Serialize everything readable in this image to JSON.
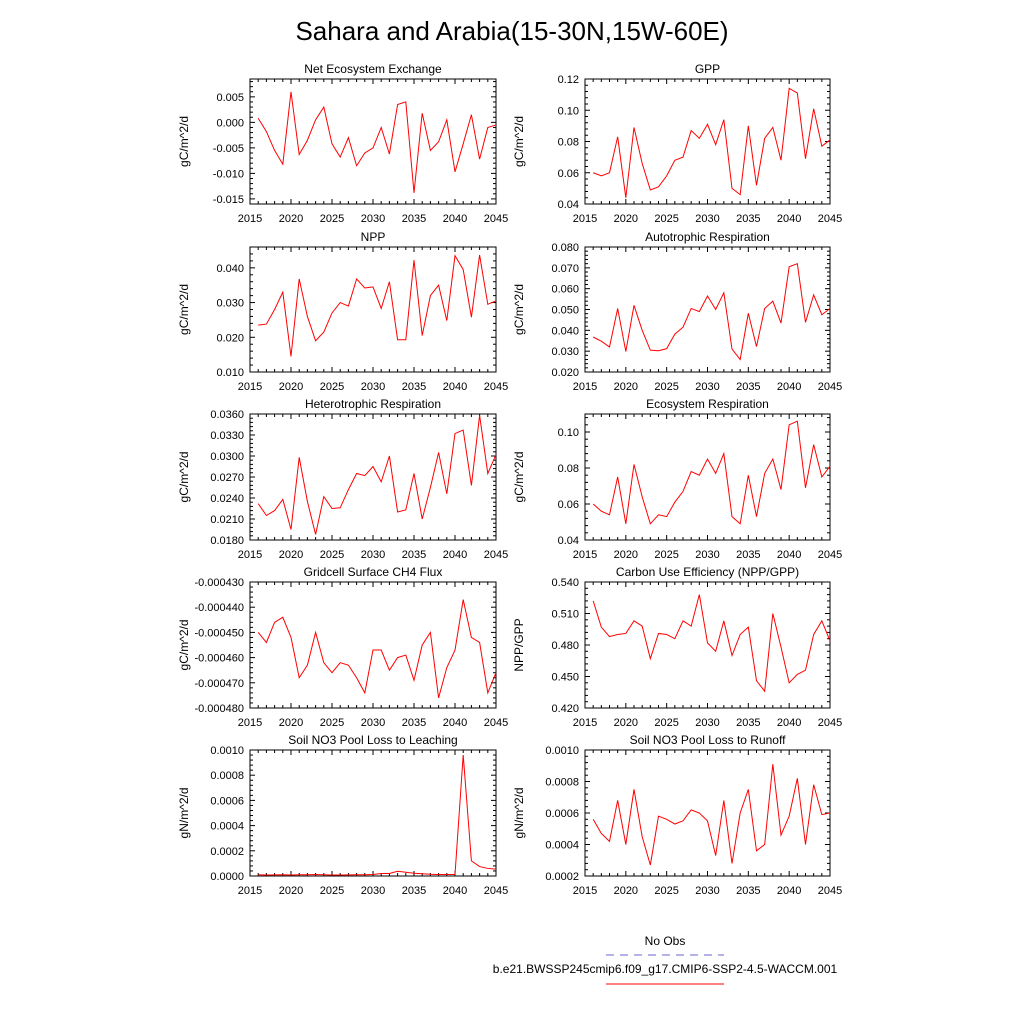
{
  "figure": {
    "title": "Sahara and Arabia(15-30N,15W-60E)",
    "legend": {
      "obs_label": "No Obs",
      "obs_color": "#6666cc",
      "model_label": "b.e21.BWSSP245cmip6.f09_g17.CMIP6-SSP2-4.5-WACCM.001",
      "model_color": "#ff0000"
    }
  },
  "chart_data": [
    {
      "type": "line",
      "title": "Net Ecosystem Exchange",
      "ylabel": "gC/m^2/d",
      "xlabel": "",
      "xlim": [
        2015,
        2045
      ],
      "ylim": [
        -0.016,
        0.0085
      ],
      "yticks": [
        -0.015,
        -0.01,
        -0.005,
        0.0,
        0.005
      ],
      "ytick_labels": [
        "-0.015",
        "-0.010",
        "-0.005",
        "0.000",
        "0.005"
      ],
      "xticks": [
        2015,
        2020,
        2025,
        2030,
        2035,
        2040,
        2045
      ],
      "series": [
        {
          "color": "#ff0000",
          "x": [
            2016,
            2017,
            2018,
            2019,
            2020,
            2021,
            2022,
            2023,
            2024,
            2025,
            2026,
            2027,
            2028,
            2029,
            2030,
            2031,
            2032,
            2033,
            2034,
            2035,
            2036,
            2037,
            2038,
            2039,
            2040,
            2041,
            2042,
            2043,
            2044,
            2045
          ],
          "values": [
            0.0008,
            -0.0018,
            -0.0055,
            -0.0082,
            0.006,
            -0.0063,
            -0.0035,
            0.0005,
            0.003,
            -0.0042,
            -0.0068,
            -0.003,
            -0.0085,
            -0.006,
            -0.005,
            -0.001,
            -0.0062,
            0.0035,
            0.004,
            -0.0138,
            0.0018,
            -0.0055,
            -0.0038,
            0.0005,
            -0.0097,
            -0.0042,
            0.0015,
            -0.0072,
            -0.001,
            -0.0005
          ]
        }
      ]
    },
    {
      "type": "line",
      "title": "GPP",
      "ylabel": "gC/m^2/d",
      "xlabel": "",
      "xlim": [
        2015,
        2045
      ],
      "ylim": [
        0.04,
        0.12
      ],
      "yticks": [
        0.04,
        0.06,
        0.08,
        0.1,
        0.12
      ],
      "ytick_labels": [
        "0.04",
        "0.06",
        "0.08",
        "0.10",
        "0.12"
      ],
      "xticks": [
        2015,
        2020,
        2025,
        2030,
        2035,
        2040,
        2045
      ],
      "series": [
        {
          "color": "#ff0000",
          "x": [
            2016,
            2017,
            2018,
            2019,
            2020,
            2021,
            2022,
            2023,
            2024,
            2025,
            2026,
            2027,
            2028,
            2029,
            2030,
            2031,
            2032,
            2033,
            2034,
            2035,
            2036,
            2037,
            2038,
            2039,
            2040,
            2041,
            2042,
            2043,
            2044,
            2045
          ],
          "values": [
            0.06,
            0.058,
            0.06,
            0.083,
            0.044,
            0.089,
            0.066,
            0.049,
            0.051,
            0.058,
            0.068,
            0.07,
            0.087,
            0.082,
            0.091,
            0.078,
            0.094,
            0.05,
            0.046,
            0.09,
            0.052,
            0.082,
            0.089,
            0.068,
            0.114,
            0.111,
            0.069,
            0.101,
            0.077,
            0.081
          ]
        }
      ]
    },
    {
      "type": "line",
      "title": "NPP",
      "ylabel": "gC/m^2/d",
      "xlabel": "",
      "xlim": [
        2015,
        2045
      ],
      "ylim": [
        0.01,
        0.046
      ],
      "yticks": [
        0.01,
        0.02,
        0.03,
        0.04
      ],
      "ytick_labels": [
        "0.010",
        "0.020",
        "0.030",
        "0.040"
      ],
      "xticks": [
        2015,
        2020,
        2025,
        2030,
        2035,
        2040,
        2045
      ],
      "series": [
        {
          "color": "#ff0000",
          "x": [
            2016,
            2017,
            2018,
            2019,
            2020,
            2021,
            2022,
            2023,
            2024,
            2025,
            2026,
            2027,
            2028,
            2029,
            2030,
            2031,
            2032,
            2033,
            2034,
            2035,
            2036,
            2037,
            2038,
            2039,
            2040,
            2041,
            2042,
            2043,
            2044,
            2045
          ],
          "values": [
            0.0235,
            0.0238,
            0.028,
            0.033,
            0.0145,
            0.0368,
            0.026,
            0.019,
            0.0215,
            0.027,
            0.03,
            0.029,
            0.0368,
            0.0342,
            0.0345,
            0.0283,
            0.036,
            0.0193,
            0.0193,
            0.0422,
            0.0205,
            0.032,
            0.035,
            0.0248,
            0.0435,
            0.0395,
            0.0258,
            0.0437,
            0.0295,
            0.0305
          ]
        }
      ]
    },
    {
      "type": "line",
      "title": "Autotrophic Respiration",
      "ylabel": "gC/m^2/d",
      "xlabel": "",
      "xlim": [
        2015,
        2045
      ],
      "ylim": [
        0.02,
        0.08
      ],
      "yticks": [
        0.02,
        0.03,
        0.04,
        0.05,
        0.06,
        0.07,
        0.08
      ],
      "ytick_labels": [
        "0.020",
        "0.030",
        "0.040",
        "0.050",
        "0.060",
        "0.070",
        "0.080"
      ],
      "xticks": [
        2015,
        2020,
        2025,
        2030,
        2035,
        2040,
        2045
      ],
      "series": [
        {
          "color": "#ff0000",
          "x": [
            2016,
            2017,
            2018,
            2019,
            2020,
            2021,
            2022,
            2023,
            2024,
            2025,
            2026,
            2027,
            2028,
            2029,
            2030,
            2031,
            2032,
            2033,
            2034,
            2035,
            2036,
            2037,
            2038,
            2039,
            2040,
            2041,
            2042,
            2043,
            2044,
            2045
          ],
          "values": [
            0.0368,
            0.0348,
            0.032,
            0.0505,
            0.0298,
            0.052,
            0.04,
            0.0305,
            0.0302,
            0.0312,
            0.0382,
            0.0415,
            0.0505,
            0.049,
            0.0565,
            0.05,
            0.058,
            0.031,
            0.026,
            0.0482,
            0.0322,
            0.0505,
            0.054,
            0.0435,
            0.0705,
            0.072,
            0.0438,
            0.057,
            0.0475,
            0.0505
          ]
        }
      ]
    },
    {
      "type": "line",
      "title": "Heterotrophic Respiration",
      "ylabel": "gC/m^2/d",
      "xlabel": "",
      "xlim": [
        2015,
        2045
      ],
      "ylim": [
        0.018,
        0.036
      ],
      "yticks": [
        0.018,
        0.021,
        0.024,
        0.027,
        0.03,
        0.033,
        0.036
      ],
      "ytick_labels": [
        "0.0180",
        "0.0210",
        "0.0240",
        "0.0270",
        "0.0300",
        "0.0330",
        "0.0360"
      ],
      "xticks": [
        2015,
        2020,
        2025,
        2030,
        2035,
        2040,
        2045
      ],
      "series": [
        {
          "color": "#ff0000",
          "x": [
            2016,
            2017,
            2018,
            2019,
            2020,
            2021,
            2022,
            2023,
            2024,
            2025,
            2026,
            2027,
            2028,
            2029,
            2030,
            2031,
            2032,
            2033,
            2034,
            2035,
            2036,
            2037,
            2038,
            2039,
            2040,
            2041,
            2042,
            2043,
            2044,
            2045
          ],
          "values": [
            0.0232,
            0.0215,
            0.0222,
            0.0238,
            0.0195,
            0.0298,
            0.0235,
            0.0188,
            0.0242,
            0.0225,
            0.0226,
            0.0252,
            0.0275,
            0.0272,
            0.0285,
            0.0263,
            0.03,
            0.022,
            0.0223,
            0.0275,
            0.021,
            0.0255,
            0.0305,
            0.0246,
            0.0332,
            0.0337,
            0.0258,
            0.0358,
            0.0275,
            0.0302
          ]
        }
      ]
    },
    {
      "type": "line",
      "title": "Ecosystem Respiration",
      "ylabel": "gC/m^2/d",
      "xlabel": "",
      "xlim": [
        2015,
        2045
      ],
      "ylim": [
        0.04,
        0.11
      ],
      "yticks": [
        0.04,
        0.06,
        0.08,
        0.1
      ],
      "ytick_labels": [
        "0.04",
        "0.06",
        "0.08",
        "0.10"
      ],
      "xticks": [
        2015,
        2020,
        2025,
        2030,
        2035,
        2040,
        2045
      ],
      "series": [
        {
          "color": "#ff0000",
          "x": [
            2016,
            2017,
            2018,
            2019,
            2020,
            2021,
            2022,
            2023,
            2024,
            2025,
            2026,
            2027,
            2028,
            2029,
            2030,
            2031,
            2032,
            2033,
            2034,
            2035,
            2036,
            2037,
            2038,
            2039,
            2040,
            2041,
            2042,
            2043,
            2044,
            2045
          ],
          "values": [
            0.06,
            0.056,
            0.054,
            0.075,
            0.049,
            0.082,
            0.064,
            0.049,
            0.054,
            0.053,
            0.061,
            0.067,
            0.078,
            0.076,
            0.085,
            0.077,
            0.088,
            0.053,
            0.049,
            0.076,
            0.053,
            0.077,
            0.085,
            0.068,
            0.104,
            0.106,
            0.069,
            0.093,
            0.075,
            0.081
          ]
        }
      ]
    },
    {
      "type": "line",
      "title": "Gridcell Surface CH4 Flux",
      "ylabel": "gC/m^2/d",
      "xlabel": "",
      "xlim": [
        2015,
        2045
      ],
      "ylim": [
        -0.00048,
        -0.00043
      ],
      "yticks": [
        -0.00048,
        -0.00047,
        -0.00046,
        -0.00045,
        -0.00044,
        -0.00043
      ],
      "ytick_labels": [
        "-0.000480",
        "-0.000470",
        "-0.000460",
        "-0.000450",
        "-0.000440",
        "-0.000430"
      ],
      "xticks": [
        2015,
        2020,
        2025,
        2030,
        2035,
        2040,
        2045
      ],
      "series": [
        {
          "color": "#ff0000",
          "x": [
            2016,
            2017,
            2018,
            2019,
            2020,
            2021,
            2022,
            2023,
            2024,
            2025,
            2026,
            2027,
            2028,
            2029,
            2030,
            2031,
            2032,
            2033,
            2034,
            2035,
            2036,
            2037,
            2038,
            2039,
            2040,
            2041,
            2042,
            2043,
            2044,
            2045
          ],
          "values": [
            -0.00045,
            -0.000454,
            -0.000446,
            -0.000444,
            -0.000452,
            -0.000468,
            -0.000463,
            -0.00045,
            -0.000462,
            -0.000466,
            -0.000462,
            -0.000463,
            -0.000468,
            -0.000474,
            -0.000457,
            -0.000457,
            -0.000465,
            -0.00046,
            -0.000459,
            -0.000469,
            -0.000455,
            -0.00045,
            -0.000476,
            -0.000464,
            -0.000457,
            -0.000437,
            -0.000452,
            -0.000454,
            -0.000474,
            -0.000466
          ]
        }
      ]
    },
    {
      "type": "line",
      "title": "Carbon Use Efficiency (NPP/GPP)",
      "ylabel": "NPP/GPP",
      "xlabel": "",
      "xlim": [
        2015,
        2045
      ],
      "ylim": [
        0.42,
        0.54
      ],
      "yticks": [
        0.42,
        0.45,
        0.48,
        0.51,
        0.54
      ],
      "ytick_labels": [
        "0.420",
        "0.450",
        "0.480",
        "0.510",
        "0.540"
      ],
      "xticks": [
        2015,
        2020,
        2025,
        2030,
        2035,
        2040,
        2045
      ],
      "series": [
        {
          "color": "#ff0000",
          "x": [
            2016,
            2017,
            2018,
            2019,
            2020,
            2021,
            2022,
            2023,
            2024,
            2025,
            2026,
            2027,
            2028,
            2029,
            2030,
            2031,
            2032,
            2033,
            2034,
            2035,
            2036,
            2037,
            2038,
            2039,
            2040,
            2041,
            2042,
            2043,
            2044,
            2045
          ],
          "values": [
            0.522,
            0.497,
            0.488,
            0.49,
            0.491,
            0.503,
            0.498,
            0.467,
            0.491,
            0.49,
            0.486,
            0.503,
            0.498,
            0.528,
            0.482,
            0.474,
            0.503,
            0.47,
            0.49,
            0.497,
            0.446,
            0.436,
            0.51,
            0.478,
            0.444,
            0.452,
            0.456,
            0.49,
            0.503,
            0.484
          ]
        }
      ]
    },
    {
      "type": "line",
      "title": "Soil NO3 Pool Loss to Leaching",
      "ylabel": "gN/m^2/d",
      "xlabel": "",
      "xlim": [
        2015,
        2045
      ],
      "ylim": [
        0,
        0.001
      ],
      "yticks": [
        0,
        0.0002,
        0.0004,
        0.0006,
        0.0008,
        0.001
      ],
      "ytick_labels": [
        "0.0000",
        "0.0002",
        "0.0004",
        "0.0006",
        "0.0008",
        "0.0010"
      ],
      "xticks": [
        2015,
        2020,
        2025,
        2030,
        2035,
        2040,
        2045
      ],
      "series": [
        {
          "color": "#ff0000",
          "x": [
            2016,
            2017,
            2018,
            2019,
            2020,
            2021,
            2022,
            2023,
            2024,
            2025,
            2026,
            2027,
            2028,
            2029,
            2030,
            2031,
            2032,
            2033,
            2034,
            2035,
            2036,
            2037,
            2038,
            2039,
            2040,
            2041,
            2042,
            2043,
            2044,
            2045
          ],
          "values": [
            1e-05,
            8e-06,
            9e-06,
            1e-05,
            8e-06,
            1e-05,
            1e-05,
            1.2e-05,
            1e-05,
            8e-06,
            8e-06,
            9e-06,
            1e-05,
            1e-05,
            1.2e-05,
            2e-05,
            2e-05,
            3.8e-05,
            3e-05,
            2.2e-05,
            1.8e-05,
            1.4e-05,
            1.2e-05,
            1.2e-05,
            1.2e-05,
            0.00096,
            0.00012,
            7.5e-05,
            6e-05,
            5.5e-05
          ]
        }
      ]
    },
    {
      "type": "line",
      "title": "Soil NO3 Pool Loss to Runoff",
      "ylabel": "gN/m^2/d",
      "xlabel": "",
      "xlim": [
        2015,
        2045
      ],
      "ylim": [
        0.0002,
        0.001
      ],
      "yticks": [
        0.0002,
        0.0004,
        0.0006,
        0.0008,
        0.001
      ],
      "ytick_labels": [
        "0.0002",
        "0.0004",
        "0.0006",
        "0.0008",
        "0.0010"
      ],
      "xticks": [
        2015,
        2020,
        2025,
        2030,
        2035,
        2040,
        2045
      ],
      "series": [
        {
          "color": "#ff0000",
          "x": [
            2016,
            2017,
            2018,
            2019,
            2020,
            2021,
            2022,
            2023,
            2024,
            2025,
            2026,
            2027,
            2028,
            2029,
            2030,
            2031,
            2032,
            2033,
            2034,
            2035,
            2036,
            2037,
            2038,
            2039,
            2040,
            2041,
            2042,
            2043,
            2044,
            2045
          ],
          "values": [
            0.00056,
            0.00047,
            0.00042,
            0.00068,
            0.0004,
            0.00075,
            0.00045,
            0.00027,
            0.00058,
            0.00056,
            0.00053,
            0.00055,
            0.00062,
            0.0006,
            0.00055,
            0.00033,
            0.00068,
            0.00028,
            0.0006,
            0.00075,
            0.00036,
            0.0004,
            0.00091,
            0.00046,
            0.00058,
            0.00082,
            0.0004,
            0.00078,
            0.00059,
            0.0006
          ]
        }
      ]
    }
  ]
}
